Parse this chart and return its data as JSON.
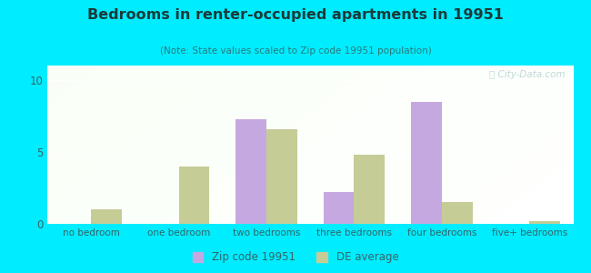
{
  "title": "Bedrooms in renter-occupied apartments in 19951",
  "subtitle": "(Note: State values scaled to Zip code 19951 population)",
  "categories": [
    "no bedroom",
    "one bedroom",
    "two bedrooms",
    "three bedrooms",
    "four bedrooms",
    "five+ bedrooms"
  ],
  "zip_values": [
    0,
    0,
    7.3,
    2.2,
    8.5,
    0
  ],
  "de_values": [
    1.0,
    4.0,
    6.6,
    4.8,
    1.5,
    0.2
  ],
  "zip_color": "#c6a8e0",
  "de_color": "#c5cc96",
  "background_outer": "#00ecff",
  "ylim": [
    0,
    11
  ],
  "yticks": [
    0,
    5,
    10
  ],
  "bar_width": 0.35,
  "watermark": "ⓘ City-Data.com",
  "legend_zip_label": "Zip code 19951",
  "legend_de_label": "DE average",
  "title_color": "#1a3a3a",
  "subtitle_color": "#2a7a7a",
  "tick_color": "#336666"
}
